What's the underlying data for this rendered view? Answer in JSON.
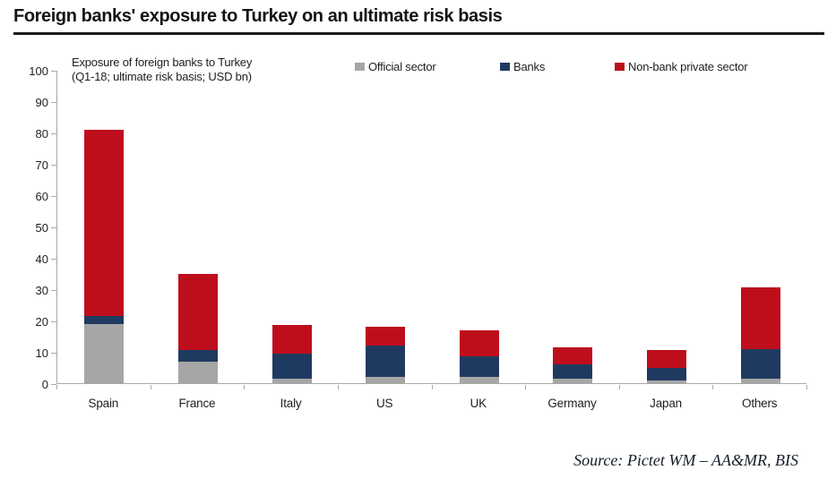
{
  "title": "Foreign banks' exposure to Turkey on an ultimate risk basis",
  "source": "Source: Pictet WM – AA&MR, BIS",
  "chart_data": {
    "type": "bar",
    "stacked": true,
    "title": "Exposure of foreign banks to Turkey (Q1-18; ultimate risk basis; USD bn)",
    "subtitle_line1": "Exposure of foreign banks to Turkey",
    "subtitle_line2": "(Q1-18; ultimate risk basis; USD bn)",
    "categories": [
      "Spain",
      "France",
      "Italy",
      "US",
      "UK",
      "Germany",
      "Japan",
      "Others"
    ],
    "series": [
      {
        "name": "Official sector",
        "color": "#a6a6a6",
        "values": [
          19,
          7,
          1.5,
          2,
          2,
          1.5,
          1,
          1.5
        ]
      },
      {
        "name": "Banks",
        "color": "#1f3a60",
        "values": [
          2.5,
          3.5,
          8,
          10,
          6.5,
          4.5,
          4,
          9.5
        ]
      },
      {
        "name": "Non-bank private sector",
        "color": "#be0e1c",
        "values": [
          59.5,
          24.5,
          9,
          6,
          8.5,
          5.5,
          5.5,
          19.5
        ]
      }
    ],
    "totals": [
      81,
      35,
      18.5,
      18,
      17,
      11.5,
      10.5,
      30.5
    ],
    "ylim": [
      0,
      100
    ],
    "ytick_step": 10,
    "ylabel": "",
    "xlabel": "",
    "grid": false,
    "legend_position": "top"
  }
}
